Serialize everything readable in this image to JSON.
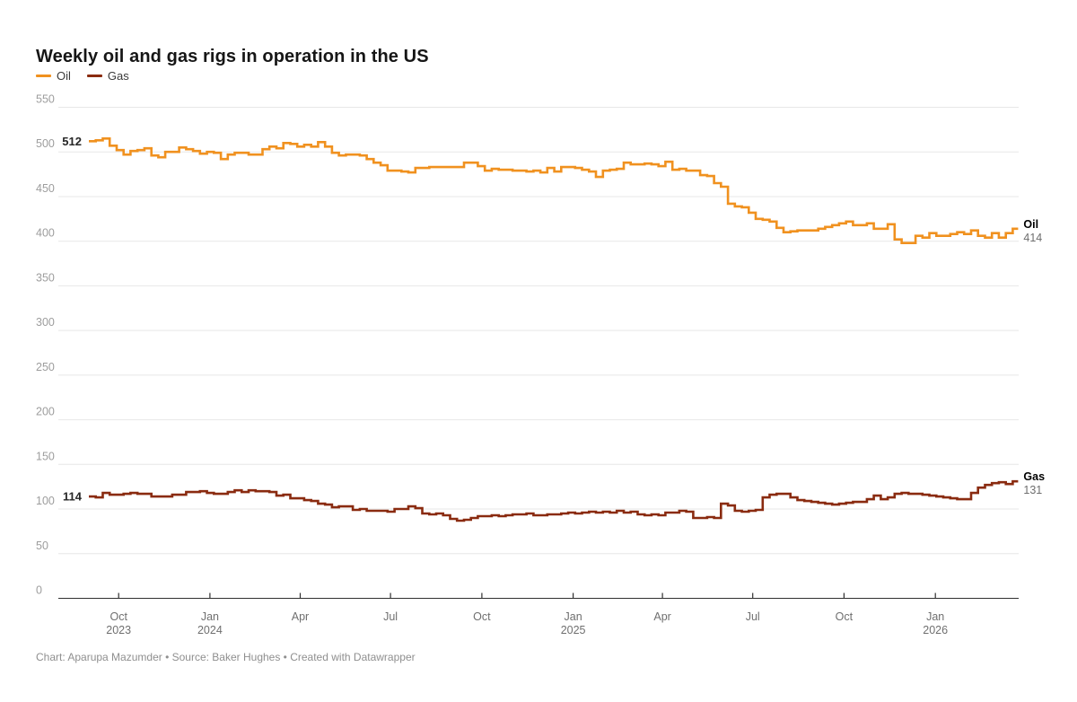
{
  "footer": {
    "credit": "Chart: Aparupa Mazumder • Source: Baker Hughes • Created with Datawrapper"
  },
  "chart_data": {
    "type": "line",
    "step": true,
    "title": "Weekly oil and gas rigs in operation in the US",
    "xlabel": "",
    "ylabel": "",
    "frequency": "weekly",
    "x_start": "2023-09-01",
    "x_end": "2026-03-20",
    "ylim": [
      0,
      550
    ],
    "grid": true,
    "legend_position": "top-left",
    "y_ticks": [
      0,
      50,
      100,
      150,
      200,
      250,
      300,
      350,
      400,
      450,
      500,
      550
    ],
    "x_ticks": [
      {
        "date": "2023-10-01",
        "label": "Oct",
        "year": "2023"
      },
      {
        "date": "2024-01-01",
        "label": "Jan",
        "year": "2024"
      },
      {
        "date": "2024-04-01",
        "label": "Apr"
      },
      {
        "date": "2024-07-01",
        "label": "Jul"
      },
      {
        "date": "2024-10-01",
        "label": "Oct"
      },
      {
        "date": "2025-01-01",
        "label": "Jan",
        "year": "2025"
      },
      {
        "date": "2025-04-01",
        "label": "Apr"
      },
      {
        "date": "2025-07-01",
        "label": "Jul"
      },
      {
        "date": "2025-10-01",
        "label": "Oct"
      },
      {
        "date": "2026-01-01",
        "label": "Jan",
        "year": "2026"
      }
    ],
    "series": [
      {
        "name": "Oil",
        "color": "#f0911f",
        "start_label": "512",
        "end_label": "414",
        "values": [
          512,
          513,
          515,
          507,
          502,
          497,
          501,
          502,
          504,
          496,
          494,
          500,
          500,
          505,
          503,
          501,
          498,
          500,
          499,
          492,
          497,
          499,
          499,
          497,
          497,
          503,
          506,
          504,
          510,
          509,
          506,
          508,
          506,
          511,
          506,
          499,
          496,
          497,
          497,
          496,
          492,
          488,
          485,
          479,
          479,
          478,
          477,
          482,
          482,
          483,
          483,
          483,
          483,
          483,
          488,
          488,
          484,
          479,
          481,
          480,
          480,
          479,
          479,
          478,
          479,
          477,
          482,
          478,
          483,
          483,
          482,
          480,
          478,
          472,
          479,
          480,
          481,
          488,
          486,
          486,
          487,
          486,
          484,
          489,
          480,
          481,
          479,
          479,
          474,
          473,
          465,
          461,
          442,
          439,
          438,
          432,
          425,
          424,
          422,
          415,
          410,
          411,
          412,
          412,
          412,
          414,
          416,
          418,
          420,
          422,
          418,
          418,
          420,
          414,
          414,
          419,
          402,
          398,
          398,
          406,
          404,
          409,
          406,
          406,
          408,
          410,
          408,
          412,
          406,
          404,
          409,
          404,
          409,
          414
        ]
      },
      {
        "name": "Gas",
        "color": "#8a2b10",
        "start_label": "114",
        "end_label": "131",
        "values": [
          114,
          113,
          118,
          116,
          116,
          117,
          118,
          117,
          117,
          114,
          114,
          114,
          116,
          116,
          119,
          119,
          120,
          118,
          117,
          117,
          119,
          121,
          119,
          121,
          120,
          120,
          119,
          115,
          116,
          112,
          112,
          110,
          109,
          106,
          105,
          102,
          103,
          103,
          99,
          100,
          98,
          98,
          98,
          97,
          100,
          100,
          103,
          101,
          95,
          94,
          95,
          93,
          89,
          87,
          88,
          90,
          92,
          92,
          93,
          92,
          93,
          94,
          94,
          95,
          93,
          93,
          94,
          94,
          95,
          96,
          95,
          96,
          97,
          96,
          97,
          96,
          98,
          96,
          97,
          94,
          93,
          94,
          93,
          96,
          96,
          98,
          97,
          90,
          90,
          91,
          90,
          106,
          104,
          98,
          97,
          98,
          99,
          113,
          116,
          117,
          117,
          113,
          110,
          109,
          108,
          107,
          106,
          105,
          106,
          107,
          108,
          108,
          111,
          115,
          111,
          113,
          117,
          118,
          117,
          117,
          116,
          115,
          114,
          113,
          112,
          111,
          111,
          118,
          124,
          127,
          129,
          130,
          128,
          131
        ]
      }
    ]
  }
}
